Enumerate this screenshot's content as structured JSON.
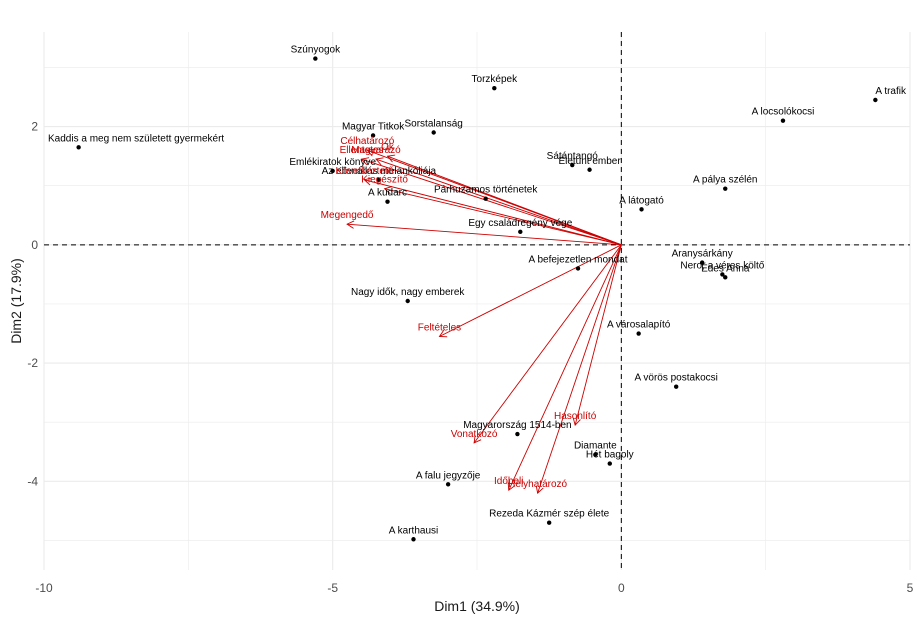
{
  "chart_data": {
    "type": "scatter",
    "subtype": "pca-biplot",
    "title": "",
    "xlabel": "Dim1 (34.9%)",
    "ylabel": "Dim2 (17.9%)",
    "xlim": [
      -10,
      5
    ],
    "ylim": [
      -5.5,
      3.6
    ],
    "x_ticks": [
      -10,
      -5,
      0,
      5
    ],
    "y_ticks": [
      -4,
      -2,
      0,
      2
    ],
    "grid": true,
    "background": "#ffffff",
    "colors": {
      "points": "#000000",
      "arrows": "#cc0000",
      "grid": "#ebebeb",
      "reference_lines": "#000000"
    },
    "points": [
      {
        "label": "Szúnyogok",
        "x": -5.3,
        "y": 3.15
      },
      {
        "label": "Torzképek",
        "x": -2.2,
        "y": 2.65
      },
      {
        "label": "A trafik",
        "x": 4.4,
        "y": 2.45
      },
      {
        "label": "A locsolókocsi",
        "x": 2.8,
        "y": 2.1
      },
      {
        "label": "Sorstalanság",
        "x": -3.25,
        "y": 1.9
      },
      {
        "label": "Magyar Titkok",
        "x": -4.3,
        "y": 1.85
      },
      {
        "label": "Kaddis a meg nem született gyermekért",
        "x": -9.4,
        "y": 1.65
      },
      {
        "label": "Sátántangó",
        "x": -0.85,
        "y": 1.35
      },
      {
        "label": "Életunt ember",
        "x": -0.55,
        "y": 1.27
      },
      {
        "label": "Emlékiratok könyve",
        "x": -5.0,
        "y": 1.25
      },
      {
        "label": "A pálya szélén",
        "x": 1.8,
        "y": 0.95
      },
      {
        "label": "Az ellenállás melankóliája",
        "x": -4.2,
        "y": 1.1
      },
      {
        "label": "Párhuzamos történetek",
        "x": -2.35,
        "y": 0.78
      },
      {
        "label": "A kudarc",
        "x": -4.05,
        "y": 0.73
      },
      {
        "label": "A látogató",
        "x": 0.35,
        "y": 0.6
      },
      {
        "label": "Egy családregény vége",
        "x": -1.75,
        "y": 0.22
      },
      {
        "label": "Aranysárkány",
        "x": 1.4,
        "y": -0.3
      },
      {
        "label": "Nero, a véres költő",
        "x": 1.75,
        "y": -0.5
      },
      {
        "label": "Édes Anna",
        "x": 1.8,
        "y": -0.55
      },
      {
        "label": "A befejezetlen mondat",
        "x": -0.75,
        "y": -0.4
      },
      {
        "label": "Nagy idők, nagy emberek",
        "x": -3.7,
        "y": -0.95
      },
      {
        "label": "A városalapító",
        "x": 0.3,
        "y": -1.5
      },
      {
        "label": "A vörös postakocsi",
        "x": 0.95,
        "y": -2.4
      },
      {
        "label": "Magyarország 1514-ben",
        "x": -1.8,
        "y": -3.2
      },
      {
        "label": "Diamante",
        "x": -0.45,
        "y": -3.55
      },
      {
        "label": "Hét bagoly",
        "x": -0.2,
        "y": -3.7
      },
      {
        "label": "A falu jegyzője",
        "x": -3.0,
        "y": -4.05
      },
      {
        "label": "Rezeda Kázmér szép élete",
        "x": -1.25,
        "y": -4.7
      },
      {
        "label": "A karthausi",
        "x": -3.6,
        "y": -4.98
      }
    ],
    "variables": [
      {
        "label": "Célhatározó",
        "x": -4.4,
        "y": 1.6
      },
      {
        "label": "Ok",
        "x": -4.05,
        "y": 1.5
      },
      {
        "label": "Magyarázó",
        "x": -4.25,
        "y": 1.45
      },
      {
        "label": "Ellentetes",
        "x": -4.5,
        "y": 1.45
      },
      {
        "label": "Következtető",
        "x": -4.45,
        "y": 1.1
      },
      {
        "label": "Kiegészítő",
        "x": -4.1,
        "y": 0.95
      },
      {
        "label": "Megengedő",
        "x": -4.75,
        "y": 0.35
      },
      {
        "label": "Feltételes",
        "x": -3.15,
        "y": -1.55
      },
      {
        "label": "Vonatkozó",
        "x": -2.55,
        "y": -3.35
      },
      {
        "label": "Hasonlító",
        "x": -0.8,
        "y": -3.05
      },
      {
        "label": "Időbeli",
        "x": -1.95,
        "y": -4.15
      },
      {
        "label": "Helyhatározó",
        "x": -1.45,
        "y": -4.2
      }
    ]
  }
}
